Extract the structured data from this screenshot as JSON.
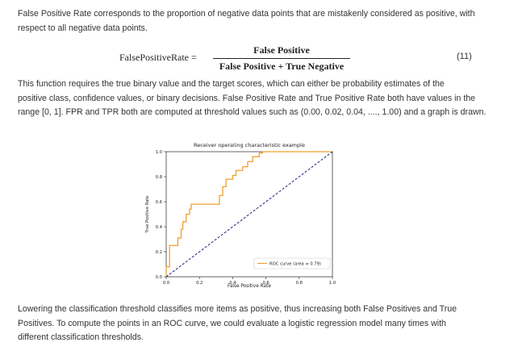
{
  "intro": {
    "line1": "False Positive Rate corresponds to the proportion of negative data points that are mistakenly considered as positive, with",
    "line2": "respect to all negative data points."
  },
  "equation": {
    "lhs": "FalsePositiveRate =",
    "numerator": "False Positive",
    "denominator": "False Positive + True Negative",
    "number": "(11)"
  },
  "description": {
    "line1": "This function requires the true binary value and the target scores, which can either be probability estimates of the",
    "line2": "positive class, confidence values, or binary decisions. False Positive Rate and True Positive Rate both have values in the",
    "line3": "range [0, 1]. FPR and TPR both are computed at threshold values such as (0.00, 0.02, 0.04, ...., 1.00) and a graph is drawn."
  },
  "chart_data": {
    "type": "line",
    "title": "Receiver operating characteristic example",
    "xlabel": "False Positive Rate",
    "ylabel": "True Positive Rate",
    "xlim": [
      0,
      1.0
    ],
    "ylim": [
      0,
      1.0
    ],
    "xticks": [
      "0.0",
      "0.2",
      "0.4",
      "0.6",
      "0.8",
      "1.0"
    ],
    "yticks": [
      "0.0",
      "0.2",
      "0.4",
      "0.6",
      "0.8",
      "1.0"
    ],
    "grid": false,
    "legend_position": "lower-right",
    "series": [
      {
        "name": "ROC curve (area = 0.79)",
        "color": "#f0a030",
        "style": "solid",
        "x": [
          0,
          0,
          0.02,
          0.02,
          0.07,
          0.07,
          0.09,
          0.09,
          0.1,
          0.1,
          0.12,
          0.12,
          0.14,
          0.14,
          0.15,
          0.15,
          0.18,
          0.18,
          0.32,
          0.32,
          0.34,
          0.34,
          0.36,
          0.36,
          0.4,
          0.4,
          0.42,
          0.42,
          0.46,
          0.46,
          0.49,
          0.49,
          0.52,
          0.52,
          0.56,
          0.56,
          0.58,
          0.58,
          1.0
        ],
        "y": [
          0,
          0.08,
          0.08,
          0.25,
          0.25,
          0.31,
          0.31,
          0.38,
          0.38,
          0.44,
          0.44,
          0.5,
          0.5,
          0.54,
          0.54,
          0.58,
          0.58,
          0.58,
          0.58,
          0.65,
          0.65,
          0.72,
          0.72,
          0.78,
          0.78,
          0.81,
          0.81,
          0.85,
          0.85,
          0.88,
          0.88,
          0.92,
          0.92,
          0.96,
          0.96,
          0.99,
          0.99,
          1.0,
          1.0
        ]
      },
      {
        "name": "",
        "color": "#1a237e",
        "style": "dashed",
        "x": [
          0,
          1
        ],
        "y": [
          0,
          1
        ]
      }
    ]
  },
  "outro": {
    "line1": "Lowering the classification threshold classifies more items as positive, thus increasing both False Positives and True",
    "line2": "Positives. To compute the points in an ROC curve, we could evaluate a logistic regression model many times with",
    "line3": "different classification thresholds."
  }
}
